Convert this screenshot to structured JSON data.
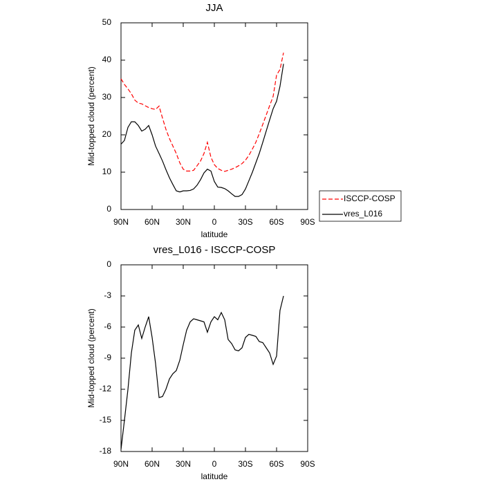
{
  "chart_data": [
    {
      "type": "line",
      "title": "JJA",
      "x_label": "latitude",
      "y_label": "Mid-topped cloud (percent)",
      "x": [
        90,
        86.7,
        83.3,
        80,
        76.7,
        73.3,
        70,
        66.7,
        63.3,
        60,
        56.7,
        53.3,
        50,
        46.7,
        43.3,
        40,
        36.7,
        33.3,
        30,
        26.7,
        23.3,
        20,
        16.7,
        13.3,
        10,
        6.7,
        3.3,
        0,
        -3.3,
        -6.7,
        -10,
        -13.3,
        -16.7,
        -20,
        -23.3,
        -26.7,
        -30,
        -33.3,
        -36.7,
        -40,
        -43.3,
        -46.7,
        -50,
        -53.3,
        -56.7,
        -60,
        -63.3,
        -66.7
      ],
      "series": [
        {
          "name": "ISCCP-COSP",
          "color": "#ff0000",
          "dashed": true,
          "values": [
            35,
            33.5,
            32.3,
            31,
            29.3,
            28.5,
            28.3,
            27.8,
            27.3,
            27,
            26.8,
            27.7,
            24.5,
            21.5,
            19,
            17,
            15,
            12.5,
            10.8,
            10.3,
            10.3,
            10.5,
            11.7,
            13,
            15,
            18,
            14,
            12,
            11,
            10.5,
            10.2,
            10.5,
            10.8,
            11.2,
            11.7,
            12.3,
            13.2,
            14.5,
            16.2,
            18,
            20.3,
            22.8,
            25.3,
            27.8,
            30.3,
            36,
            37.5,
            42
          ]
        },
        {
          "name": "vres_L016",
          "color": "#000000",
          "dashed": false,
          "values": [
            17.5,
            18.5,
            22,
            23.5,
            23.5,
            22.5,
            21,
            21.5,
            22.5,
            20,
            17,
            15,
            13,
            10.7,
            8.5,
            6.7,
            5,
            4.7,
            5,
            5,
            5.1,
            5.5,
            6.5,
            8,
            9.8,
            10.8,
            10.3,
            7.5,
            6,
            5.9,
            5.6,
            5,
            4.2,
            3.5,
            3.5,
            4,
            5.5,
            7.7,
            10,
            12.5,
            15,
            18,
            21,
            24,
            27,
            29,
            33,
            39
          ]
        }
      ],
      "xlim": [
        90,
        -90
      ],
      "xticks": [
        {
          "value": 90,
          "label": "90N"
        },
        {
          "value": 60,
          "label": "60N"
        },
        {
          "value": 30,
          "label": "30N"
        },
        0,
        {
          "value": -30,
          "label": "30S"
        },
        {
          "value": -60,
          "label": "60S"
        },
        {
          "value": -90,
          "label": "90S"
        }
      ],
      "ylim": [
        0,
        50
      ],
      "yticks": [
        0,
        10,
        20,
        30,
        40,
        50
      ],
      "grid": false,
      "legend": "right"
    },
    {
      "type": "line",
      "title": "vres_L016 - ISCCP-COSP",
      "x_label": "latitude",
      "y_label": "Mid-topped cloud (percent)",
      "x": [
        90,
        86.7,
        83.3,
        80,
        76.7,
        73.3,
        70,
        66.7,
        63.3,
        60,
        56.7,
        53.3,
        50,
        46.7,
        43.3,
        40,
        36.7,
        33.3,
        30,
        26.7,
        23.3,
        20,
        16.7,
        13.3,
        10,
        6.7,
        3.3,
        0,
        -3.3,
        -6.7,
        -10,
        -13.3,
        -16.7,
        -20,
        -23.3,
        -26.7,
        -30,
        -33.3,
        -36.7,
        -40,
        -43.3,
        -46.7,
        -50,
        -53.3,
        -56.7,
        -60,
        -63.3,
        -66.7
      ],
      "values": [
        -17.8,
        -15,
        -12,
        -8.5,
        -6.3,
        -5.8,
        -7.1,
        -6,
        -5,
        -7,
        -9.5,
        -12.8,
        -12.7,
        -12,
        -11,
        -10.5,
        -10.2,
        -9.2,
        -7.7,
        -6.3,
        -5.5,
        -5.2,
        -5.3,
        -5.4,
        -5.5,
        -6.5,
        -5.5,
        -5,
        -5.3,
        -4.6,
        -5.3,
        -7.2,
        -7.6,
        -8.2,
        -8.3,
        -8,
        -7,
        -6.7,
        -6.8,
        -6.9,
        -7.4,
        -7.5,
        -8,
        -8.5,
        -9.6,
        -8.8,
        -4.4,
        -3
      ],
      "color": "#000000",
      "xlim": [
        90,
        -90
      ],
      "xticks": [
        {
          "value": 90,
          "label": "90N"
        },
        {
          "value": 60,
          "label": "60N"
        },
        {
          "value": 30,
          "label": "30N"
        },
        0,
        {
          "value": -30,
          "label": "30S"
        },
        {
          "value": -60,
          "label": "60S"
        },
        {
          "value": -90,
          "label": "90S"
        }
      ],
      "ylim": [
        -18,
        0
      ],
      "yticks": [
        -18,
        -15,
        -12,
        -9,
        -6,
        -3,
        0
      ],
      "grid": false
    }
  ]
}
